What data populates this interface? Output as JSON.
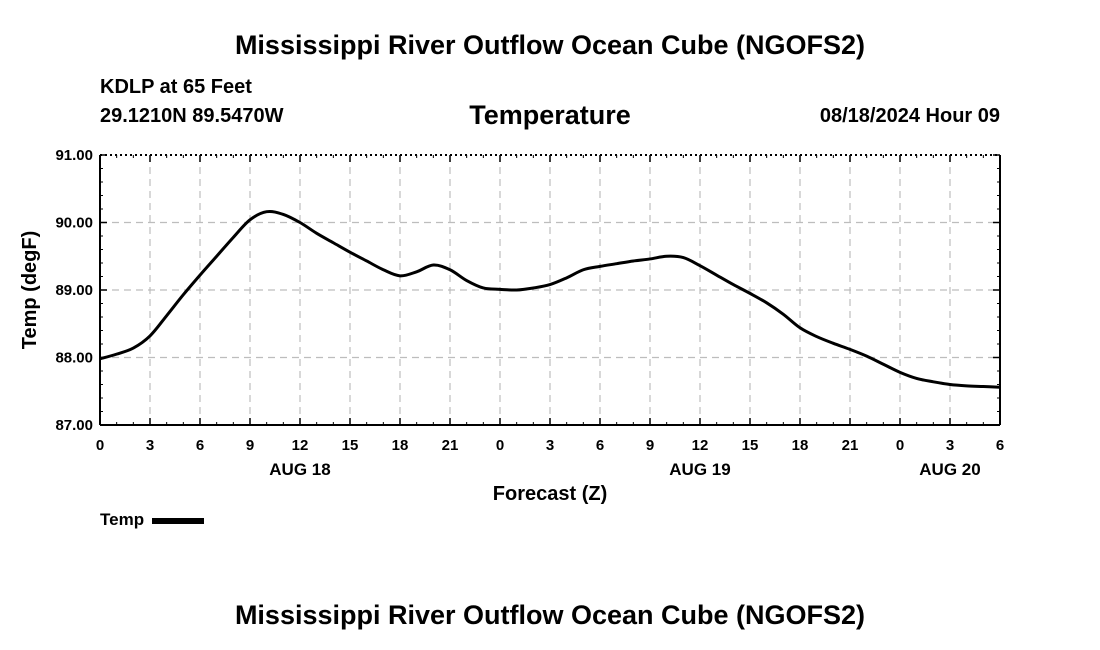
{
  "header": {
    "title": "Mississippi River Outflow Ocean Cube (NGOFS2)",
    "station": "KDLP at 65 Feet",
    "coords": "29.1210N  89.5470W",
    "variable": "Temperature",
    "datetime": "08/18/2024 Hour 09"
  },
  "footer": {
    "title": "Mississippi River Outflow Ocean Cube (NGOFS2)"
  },
  "legend": {
    "label": "Temp"
  },
  "chart_data": {
    "type": "line",
    "title": "Temperature",
    "xlabel": "Forecast (Z)",
    "ylabel": "Temp (degF)",
    "ylim": [
      87.0,
      91.0
    ],
    "yticks": [
      "87.00",
      "88.00",
      "89.00",
      "90.00",
      "91.00"
    ],
    "xlim": [
      0,
      54
    ],
    "xticks": [
      "0",
      "3",
      "6",
      "9",
      "12",
      "15",
      "18",
      "21",
      "0",
      "3",
      "6",
      "9",
      "12",
      "15",
      "18",
      "21",
      "0",
      "3",
      "6"
    ],
    "day_labels": [
      {
        "label": "AUG 18",
        "hour": 12
      },
      {
        "label": "AUG 19",
        "hour": 36
      },
      {
        "label": "AUG 20",
        "hour": 51
      }
    ],
    "grid": true,
    "series": [
      {
        "name": "Temp",
        "x": [
          0,
          1,
          2,
          3,
          4,
          5,
          6,
          7,
          8,
          9,
          10,
          11,
          12,
          13,
          14,
          15,
          16,
          17,
          18,
          19,
          20,
          21,
          22,
          23,
          24,
          25,
          26,
          27,
          28,
          29,
          30,
          31,
          32,
          33,
          34,
          35,
          36,
          37,
          38,
          39,
          40,
          41,
          42,
          43,
          44,
          45,
          46,
          47,
          48,
          49,
          50,
          51,
          52,
          53,
          54
        ],
        "values": [
          87.98,
          88.05,
          88.14,
          88.32,
          88.62,
          88.93,
          89.22,
          89.5,
          89.78,
          90.04,
          90.16,
          90.12,
          90.0,
          89.84,
          89.7,
          89.56,
          89.43,
          89.3,
          89.21,
          89.27,
          89.37,
          89.3,
          89.14,
          89.03,
          89.01,
          89.0,
          89.03,
          89.08,
          89.18,
          89.3,
          89.35,
          89.39,
          89.43,
          89.46,
          89.5,
          89.48,
          89.36,
          89.22,
          89.08,
          88.95,
          88.81,
          88.64,
          88.44,
          88.31,
          88.21,
          88.12,
          88.02,
          87.9,
          87.78,
          87.69,
          87.64,
          87.6,
          87.58,
          87.57,
          87.56
        ]
      }
    ]
  }
}
